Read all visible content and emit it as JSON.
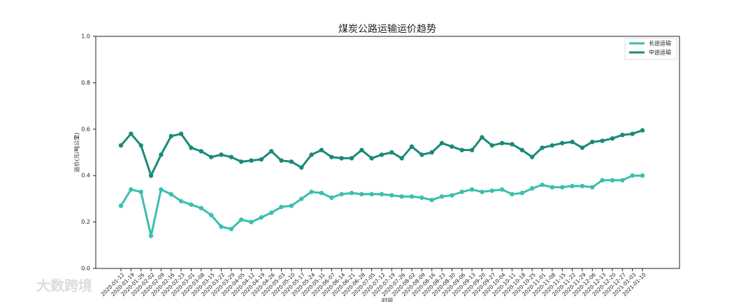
{
  "chart_data": {
    "type": "line",
    "title": "煤炭公路运输运价趋势",
    "xlabel": "时间",
    "ylabel": "运价(元/吨公里)",
    "categories": [
      "2020-01-12",
      "2020-01-19",
      "2020-01-26",
      "2020-02-02",
      "2020-02-09",
      "2020-02-16",
      "2020-02-23",
      "2020-03-01",
      "2020-03-08",
      "2020-03-15",
      "2020-03-22",
      "2020-03-29",
      "2020-04-05",
      "2020-04-12",
      "2020-04-19",
      "2020-04-26",
      "2020-05-03",
      "2020-05-10",
      "2020-05-17",
      "2020-05-24",
      "2020-05-31",
      "2020-06-07",
      "2020-06-14",
      "2020-06-21",
      "2020-06-28",
      "2020-07-05",
      "2020-07-12",
      "2020-07-19",
      "2020-07-26",
      "2020-08-02",
      "2020-08-09",
      "2020-08-16",
      "2020-08-23",
      "2020-08-30",
      "2020-09-06",
      "2020-09-13",
      "2020-09-20",
      "2020-09-27",
      "2020-10-04",
      "2020-10-11",
      "2020-10-18",
      "2020-10-25",
      "2020-11-01",
      "2020-11-08",
      "2020-11-15",
      "2020-11-22",
      "2020-11-29",
      "2020-12-06",
      "2020-12-13",
      "2020-12-20",
      "2020-12-27",
      "2021-01-03",
      "2021-01-10"
    ],
    "series": [
      {
        "name": "长途运输",
        "color": "#3bbfad",
        "values": [
          0.27,
          0.34,
          0.33,
          0.14,
          0.34,
          0.32,
          0.29,
          0.275,
          0.26,
          0.23,
          0.18,
          0.17,
          0.21,
          0.2,
          0.22,
          0.24,
          0.265,
          0.27,
          0.3,
          0.33,
          0.325,
          0.305,
          0.32,
          0.325,
          0.32,
          0.32,
          0.32,
          0.315,
          0.31,
          0.31,
          0.305,
          0.295,
          0.31,
          0.315,
          0.33,
          0.34,
          0.33,
          0.335,
          0.34,
          0.32,
          0.325,
          0.345,
          0.36,
          0.35,
          0.35,
          0.355,
          0.355,
          0.35,
          0.38,
          0.38,
          0.38,
          0.4,
          0.4
        ]
      },
      {
        "name": "中途运输",
        "color": "#1a8a78",
        "values": [
          0.53,
          0.58,
          0.53,
          0.4,
          0.49,
          0.57,
          0.58,
          0.52,
          0.505,
          0.48,
          0.49,
          0.48,
          0.46,
          0.465,
          0.47,
          0.505,
          0.465,
          0.46,
          0.435,
          0.49,
          0.51,
          0.48,
          0.475,
          0.475,
          0.51,
          0.475,
          0.49,
          0.5,
          0.475,
          0.525,
          0.49,
          0.5,
          0.54,
          0.525,
          0.51,
          0.51,
          0.565,
          0.53,
          0.54,
          0.535,
          0.51,
          0.48,
          0.52,
          0.53,
          0.54,
          0.545,
          0.52,
          0.545,
          0.55,
          0.56,
          0.575,
          0.58,
          0.595
        ]
      }
    ],
    "ylim": [
      0,
      1
    ],
    "yticks": [
      {
        "value": 0,
        "label": "0.0"
      },
      0.2,
      0.4,
      0.6,
      0.8,
      {
        "value": 1,
        "label": "1.0"
      }
    ],
    "grid": false,
    "legend": "upper right"
  },
  "watermark": "大数跨境"
}
